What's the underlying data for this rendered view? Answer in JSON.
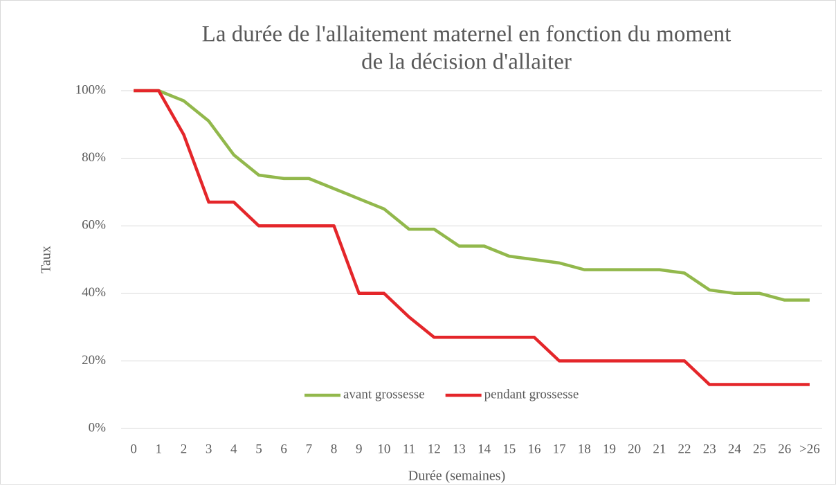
{
  "chart_data": {
    "type": "line",
    "title": [
      "La durée de l'allaitement maternel en fonction du moment",
      "de la décision d'allaiter"
    ],
    "xlabel": "Durée (semaines)",
    "ylabel": "Taux",
    "categories": [
      "0",
      "1",
      "2",
      "3",
      "4",
      "5",
      "6",
      "7",
      "8",
      "9",
      "10",
      "11",
      "12",
      "13",
      "14",
      "15",
      "16",
      "17",
      "18",
      "19",
      "20",
      "21",
      "22",
      "23",
      "24",
      "25",
      "26",
      ">26"
    ],
    "series": [
      {
        "name": "avant grossesse",
        "color": "#92b84c",
        "values": [
          100,
          100,
          97,
          91,
          81,
          75,
          74,
          74,
          71,
          68,
          65,
          59,
          59,
          54,
          54,
          51,
          50,
          49,
          47,
          47,
          47,
          47,
          46,
          41,
          40,
          40,
          38,
          38
        ]
      },
      {
        "name": "pendant grossesse",
        "color": "#e4262a",
        "values": [
          100,
          100,
          87,
          67,
          67,
          60,
          60,
          60,
          60,
          40,
          40,
          33,
          27,
          27,
          27,
          27,
          27,
          20,
          20,
          20,
          20,
          20,
          20,
          13,
          13,
          13,
          13,
          13
        ]
      }
    ],
    "ylim": [
      0,
      100
    ],
    "yticks": [
      {
        "value": 0,
        "label": "0%"
      },
      {
        "value": 20,
        "label": "20%"
      },
      {
        "value": 40,
        "label": "40%"
      },
      {
        "value": 60,
        "label": "60%"
      },
      {
        "value": 80,
        "label": "80%"
      },
      {
        "value": 100,
        "label": "100%"
      }
    ],
    "grid": true,
    "legend": "bottom"
  }
}
